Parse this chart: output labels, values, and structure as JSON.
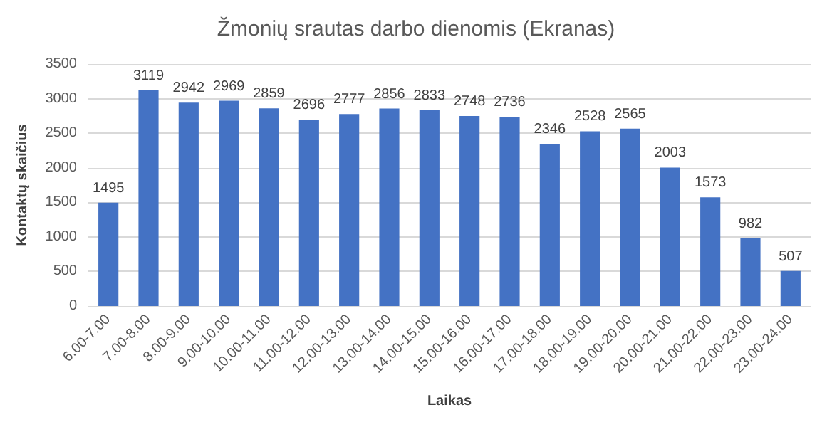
{
  "chart_data": {
    "type": "bar",
    "title": "Žmonių srautas darbo dienomis (Ekranas)",
    "xlabel": "Laikas",
    "ylabel": "Kontaktų skaičius",
    "categories": [
      "6.00-7.00",
      "7.00-8.00",
      "8.00-9.00",
      "9.00-10.00",
      "10.00-11.00",
      "11.00-12.00",
      "12.00-13.00",
      "13.00-14.00",
      "14.00-15.00",
      "15.00-16.00",
      "16.00-17.00",
      "17.00-18.00",
      "18.00-19.00",
      "19.00-20.00",
      "20.00-21.00",
      "21.00-22.00",
      "22.00-23.00",
      "23.00-24.00"
    ],
    "values": [
      1495,
      3119,
      2942,
      2969,
      2859,
      2696,
      2777,
      2856,
      2833,
      2748,
      2736,
      2346,
      2528,
      2565,
      2003,
      1573,
      982,
      507
    ],
    "color": "#4472c4",
    "ylim": [
      0,
      3500
    ],
    "yticks": [
      0,
      500,
      1000,
      1500,
      2000,
      2500,
      3000,
      3500
    ],
    "grid": "y",
    "data_labels": true
  }
}
